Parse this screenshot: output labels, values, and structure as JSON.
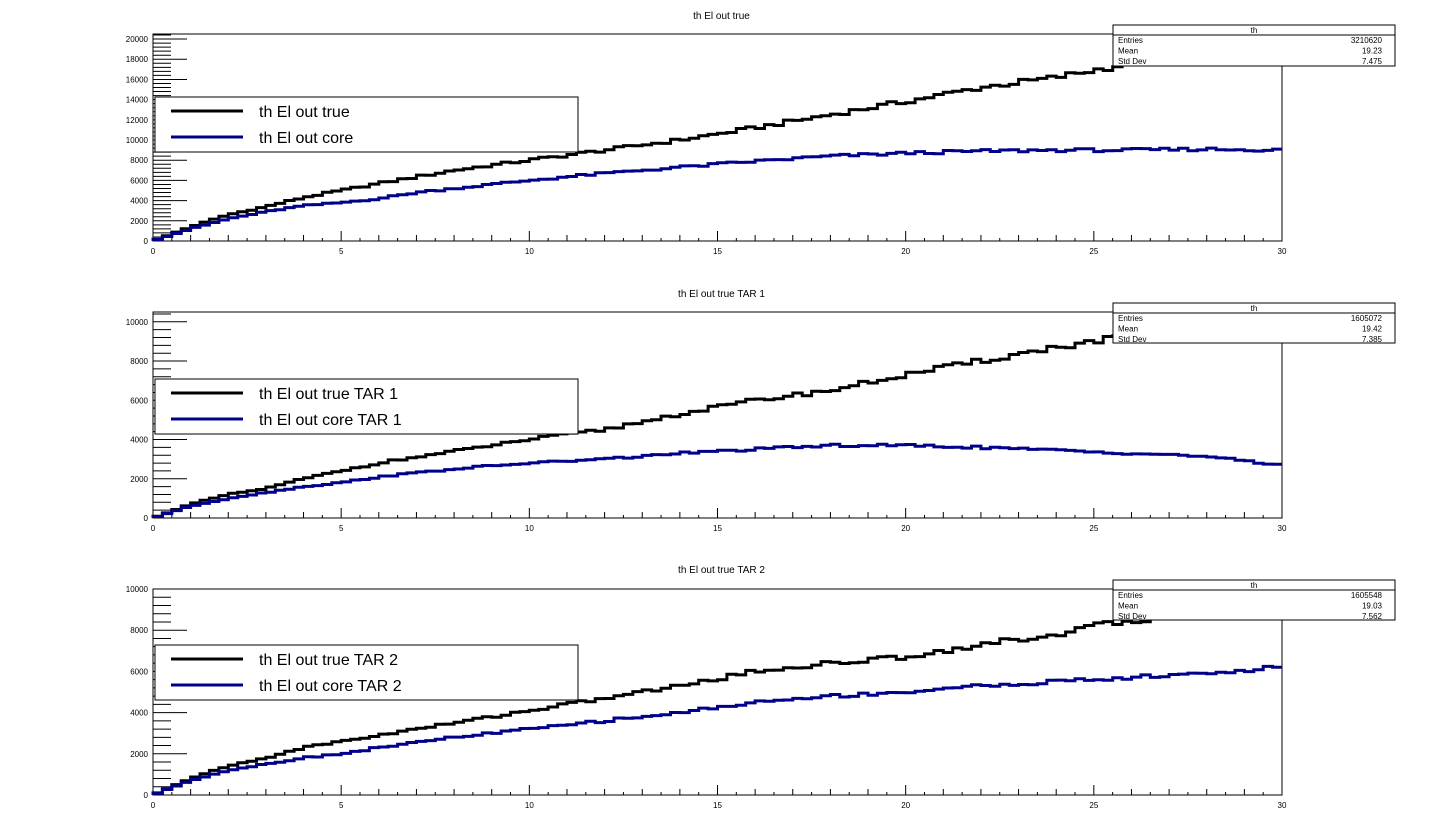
{
  "chart_data": [
    {
      "type": "histogram",
      "title": "th El out true",
      "xlim": [
        0,
        30
      ],
      "ylim": [
        0,
        20500
      ],
      "x_ticks": [
        0,
        5,
        10,
        15,
        20,
        25,
        30
      ],
      "y_ticks": [
        0,
        2000,
        4000,
        6000,
        8000,
        10000,
        12000,
        14000,
        16000,
        18000,
        20000
      ],
      "bin_count": 120,
      "stats": {
        "header": "th",
        "rows": [
          {
            "label": "Entries",
            "value": "3210620"
          },
          {
            "label": "Mean",
            "value": "19.23"
          },
          {
            "label": "Std Dev",
            "value": "7.475"
          }
        ]
      },
      "legend": [
        "th El out true",
        "th El out core"
      ],
      "series": [
        {
          "name": "th El out true",
          "color": "#000000",
          "anchors": [
            [
              0,
              0
            ],
            [
              1,
              1400
            ],
            [
              2,
              2600
            ],
            [
              3,
              3400
            ],
            [
              4,
              4300
            ],
            [
              5,
              5000
            ],
            [
              6,
              5700
            ],
            [
              8,
              7000
            ],
            [
              10,
              8000
            ],
            [
              12,
              9000
            ],
            [
              14,
              10000
            ],
            [
              16,
              11200
            ],
            [
              18,
              12500
            ],
            [
              20,
              13800
            ],
            [
              22,
              15200
            ],
            [
              24,
              16200
            ],
            [
              25,
              16900
            ],
            [
              26,
              17600
            ],
            [
              27,
              18300
            ],
            [
              28,
              18900
            ],
            [
              29,
              19300
            ],
            [
              30,
              19700
            ]
          ]
        },
        {
          "name": "th El out core",
          "color": "#00008b",
          "anchors": [
            [
              0,
              0
            ],
            [
              1,
              1200
            ],
            [
              2,
              2200
            ],
            [
              3,
              2900
            ],
            [
              4,
              3500
            ],
            [
              5,
              3800
            ],
            [
              6,
              4200
            ],
            [
              7,
              4800
            ],
            [
              8,
              5200
            ],
            [
              10,
              6000
            ],
            [
              12,
              6700
            ],
            [
              14,
              7300
            ],
            [
              16,
              7900
            ],
            [
              18,
              8400
            ],
            [
              20,
              8700
            ],
            [
              22,
              8900
            ],
            [
              24,
              9000
            ],
            [
              26,
              9000
            ],
            [
              28,
              9100
            ],
            [
              30,
              9000
            ]
          ]
        }
      ]
    },
    {
      "type": "histogram",
      "title": "th El out true TAR 1",
      "xlim": [
        0,
        30
      ],
      "ylim": [
        0,
        10500
      ],
      "x_ticks": [
        0,
        5,
        10,
        15,
        20,
        25,
        30
      ],
      "y_ticks": [
        0,
        2000,
        4000,
        6000,
        8000,
        10000
      ],
      "bin_count": 120,
      "stats": {
        "header": "th",
        "rows": [
          {
            "label": "Entries",
            "value": "1605072"
          },
          {
            "label": "Mean",
            "value": "19.42"
          },
          {
            "label": "Std Dev",
            "value": "7.385"
          }
        ]
      },
      "legend": [
        "th El out true TAR 1",
        "th El out core TAR 1"
      ],
      "series": [
        {
          "name": "th El out true TAR 1",
          "color": "#000000",
          "anchors": [
            [
              0,
              0
            ],
            [
              1,
              700
            ],
            [
              2,
              1200
            ],
            [
              3,
              1500
            ],
            [
              4,
              2000
            ],
            [
              5,
              2400
            ],
            [
              6,
              2800
            ],
            [
              8,
              3400
            ],
            [
              10,
              4000
            ],
            [
              12,
              4500
            ],
            [
              14,
              5300
            ],
            [
              16,
              6000
            ],
            [
              18,
              6500
            ],
            [
              20,
              7300
            ],
            [
              22,
              8000
            ],
            [
              24,
              8700
            ],
            [
              25,
              9000
            ],
            [
              26,
              9300
            ],
            [
              27,
              9700
            ],
            [
              28,
              9900
            ],
            [
              29,
              10100
            ],
            [
              30,
              10200
            ]
          ]
        },
        {
          "name": "th El out core TAR 1",
          "color": "#00008b",
          "anchors": [
            [
              0,
              0
            ],
            [
              1,
              600
            ],
            [
              2,
              1000
            ],
            [
              3,
              1300
            ],
            [
              4,
              1600
            ],
            [
              5,
              1800
            ],
            [
              6,
              2100
            ],
            [
              8,
              2500
            ],
            [
              10,
              2800
            ],
            [
              12,
              3000
            ],
            [
              14,
              3300
            ],
            [
              16,
              3500
            ],
            [
              18,
              3700
            ],
            [
              20,
              3700
            ],
            [
              22,
              3600
            ],
            [
              24,
              3450
            ],
            [
              26,
              3300
            ],
            [
              28,
              3150
            ],
            [
              29,
              2900
            ],
            [
              30,
              2700
            ]
          ]
        }
      ]
    },
    {
      "type": "histogram",
      "title": "th El out true TAR 2",
      "xlim": [
        0,
        30
      ],
      "ylim": [
        0,
        10000
      ],
      "x_ticks": [
        0,
        5,
        10,
        15,
        20,
        25,
        30
      ],
      "y_ticks": [
        0,
        2000,
        4000,
        6000,
        8000,
        10000
      ],
      "bin_count": 120,
      "stats": {
        "header": "th",
        "rows": [
          {
            "label": "Entries",
            "value": "1605548"
          },
          {
            "label": "Mean",
            "value": "19.03"
          },
          {
            "label": "Std Dev",
            "value": "7.562"
          }
        ]
      },
      "legend": [
        "th El out true TAR 2",
        "th El out core TAR 2"
      ],
      "series": [
        {
          "name": "th El out true TAR 2",
          "color": "#000000",
          "anchors": [
            [
              0,
              0
            ],
            [
              1,
              800
            ],
            [
              2,
              1400
            ],
            [
              3,
              1800
            ],
            [
              4,
              2300
            ],
            [
              5,
              2600
            ],
            [
              6,
              2900
            ],
            [
              8,
              3500
            ],
            [
              10,
              4100
            ],
            [
              12,
              4700
            ],
            [
              14,
              5300
            ],
            [
              16,
              6000
            ],
            [
              18,
              6400
            ],
            [
              20,
              6700
            ],
            [
              22,
              7300
            ],
            [
              24,
              7800
            ],
            [
              25,
              8200
            ],
            [
              26,
              8400
            ],
            [
              27,
              8700
            ],
            [
              28,
              8900
            ],
            [
              29,
              9100
            ],
            [
              30,
              9300
            ]
          ]
        },
        {
          "name": "th El out core TAR 2",
          "color": "#00008b",
          "anchors": [
            [
              0,
              0
            ],
            [
              1,
              700
            ],
            [
              2,
              1200
            ],
            [
              3,
              1500
            ],
            [
              4,
              1800
            ],
            [
              5,
              2000
            ],
            [
              6,
              2300
            ],
            [
              8,
              2800
            ],
            [
              10,
              3200
            ],
            [
              12,
              3600
            ],
            [
              14,
              4000
            ],
            [
              16,
              4500
            ],
            [
              18,
              4800
            ],
            [
              20,
              5000
            ],
            [
              22,
              5300
            ],
            [
              24,
              5500
            ],
            [
              26,
              5700
            ],
            [
              28,
              5900
            ],
            [
              30,
              6200
            ]
          ]
        }
      ]
    }
  ]
}
